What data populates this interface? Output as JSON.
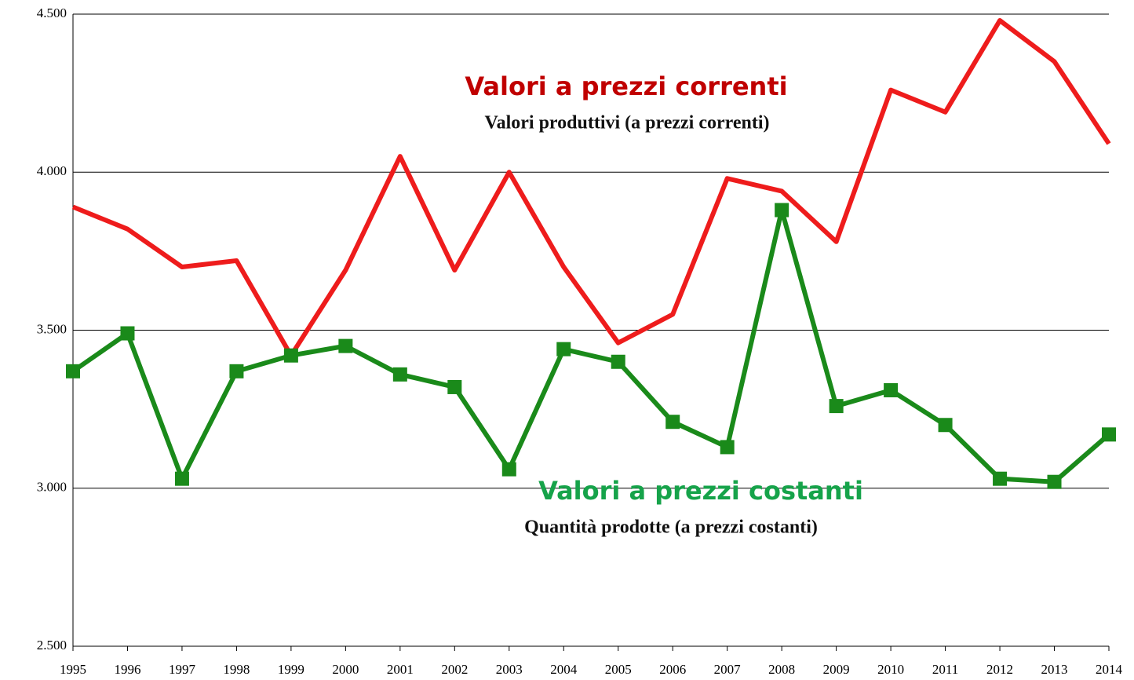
{
  "chart_data": {
    "type": "line",
    "categories": [
      "1995",
      "1996",
      "1997",
      "1998",
      "1999",
      "2000",
      "2001",
      "2002",
      "2003",
      "2004",
      "2005",
      "2006",
      "2007",
      "2008",
      "2009",
      "2010",
      "2011",
      "2012",
      "2013",
      "2014"
    ],
    "series": [
      {
        "name": "Valori a prezzi correnti",
        "color": "#ee1c1c",
        "marker": "none",
        "values": [
          3890,
          3820,
          3700,
          3720,
          3420,
          3690,
          4050,
          3690,
          4000,
          3700,
          3460,
          3550,
          3980,
          3940,
          3780,
          4260,
          4190,
          4480,
          4350,
          4090
        ]
      },
      {
        "name": "Valori a prezzi costanti",
        "color": "#1a8a1a",
        "marker": "square",
        "values": [
          3370,
          3490,
          3030,
          3370,
          3420,
          3450,
          3360,
          3320,
          3060,
          3440,
          3400,
          3210,
          3130,
          3880,
          3260,
          3310,
          3200,
          3030,
          3020,
          3170
        ]
      }
    ],
    "annotations": [
      "Valori produttivi (a prezzi correnti)",
      "Quantità prodotte (a prezzi costanti)"
    ],
    "ylim": [
      2500,
      4500
    ],
    "yticks": [
      {
        "value": 2500,
        "label": "2.500"
      },
      {
        "value": 3000,
        "label": "3.000"
      },
      {
        "value": 3500,
        "label": "3.500"
      },
      {
        "value": 4000,
        "label": "4.000"
      },
      {
        "value": 4500,
        "label": "4.500"
      }
    ],
    "grid": true
  }
}
